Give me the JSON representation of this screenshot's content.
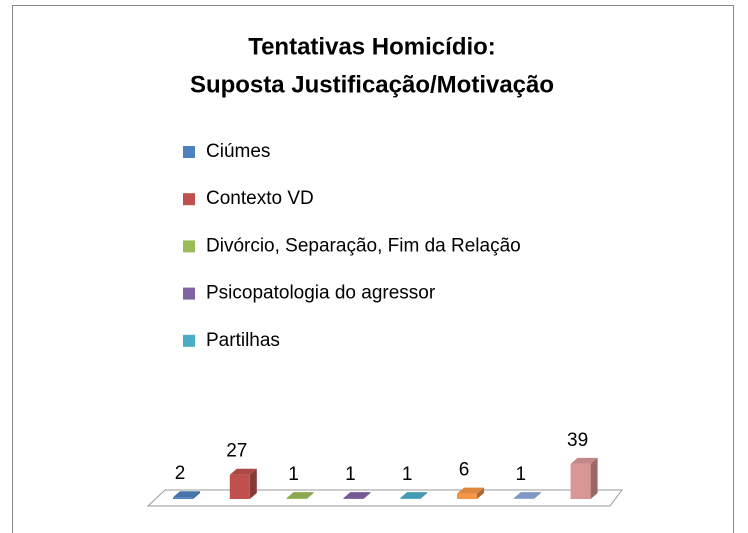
{
  "chart_data": {
    "type": "bar3d",
    "title": [
      "Tentativas Homicídio:",
      "Suposta Justificação/Motivação"
    ],
    "categories": [
      "Ciúmes",
      "Contexto VD",
      "Divórcio, Separação, Fim da Relação",
      "Psicopatologia do agressor",
      "Partilhas",
      null,
      null,
      null
    ],
    "values": [
      2,
      27,
      1,
      1,
      1,
      6,
      1,
      39
    ],
    "colors": [
      "#4f81bd",
      "#c0504d",
      "#9bbb59",
      "#8064a2",
      "#4bacc6",
      "#f79646",
      "#8eaad8",
      "#d99694"
    ],
    "legend": "top-left"
  }
}
